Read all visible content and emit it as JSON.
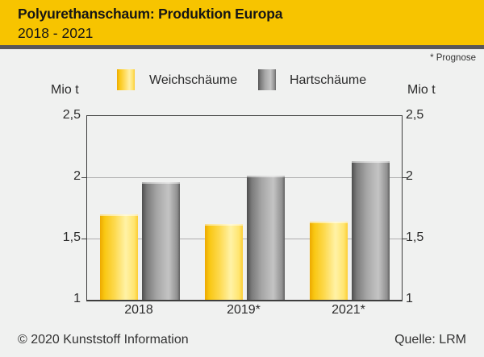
{
  "header": {
    "title": "Polyurethanschaum: Produktion Europa",
    "subtitle": "2018 - 2021"
  },
  "note": "* Prognose",
  "legend": [
    {
      "label": "Weichschäume",
      "swatch": "yellow-gradient-square"
    },
    {
      "label": "Hartschäume",
      "swatch": "gray-gradient-square"
    }
  ],
  "axis_unit_left": "Mio t",
  "axis_unit_right": "Mio t",
  "footer": {
    "copyright": "© 2020 Kunststoff Information",
    "source": "Quelle: LRM"
  },
  "colors": {
    "banner_yellow": "#f7c400",
    "separator_gray": "#57575a",
    "background": "#f0f1f0",
    "bar_yellow": "#fcd035",
    "bar_gray": "#9a9a9a",
    "gridline": "#adadad"
  },
  "chart_data": {
    "type": "bar",
    "title": "Polyurethanschaum: Produktion Europa 2018 - 2021",
    "categories": [
      "2018",
      "2019*",
      "2021*"
    ],
    "series": [
      {
        "name": "Weichschäume",
        "values": [
          1.7,
          1.62,
          1.64
        ]
      },
      {
        "name": "Hartschäume",
        "values": [
          1.96,
          2.01,
          2.13
        ]
      }
    ],
    "ylabel": "Mio t",
    "ylim": [
      1,
      2.5
    ],
    "yticks": [
      1,
      1.5,
      2,
      2.5
    ],
    "ytick_labels": [
      "1",
      "1,5",
      "2",
      "2,5"
    ],
    "gridlines": [
      1.5,
      2
    ],
    "grid": true,
    "legend_position": "top",
    "y_axis_sides": "both"
  }
}
